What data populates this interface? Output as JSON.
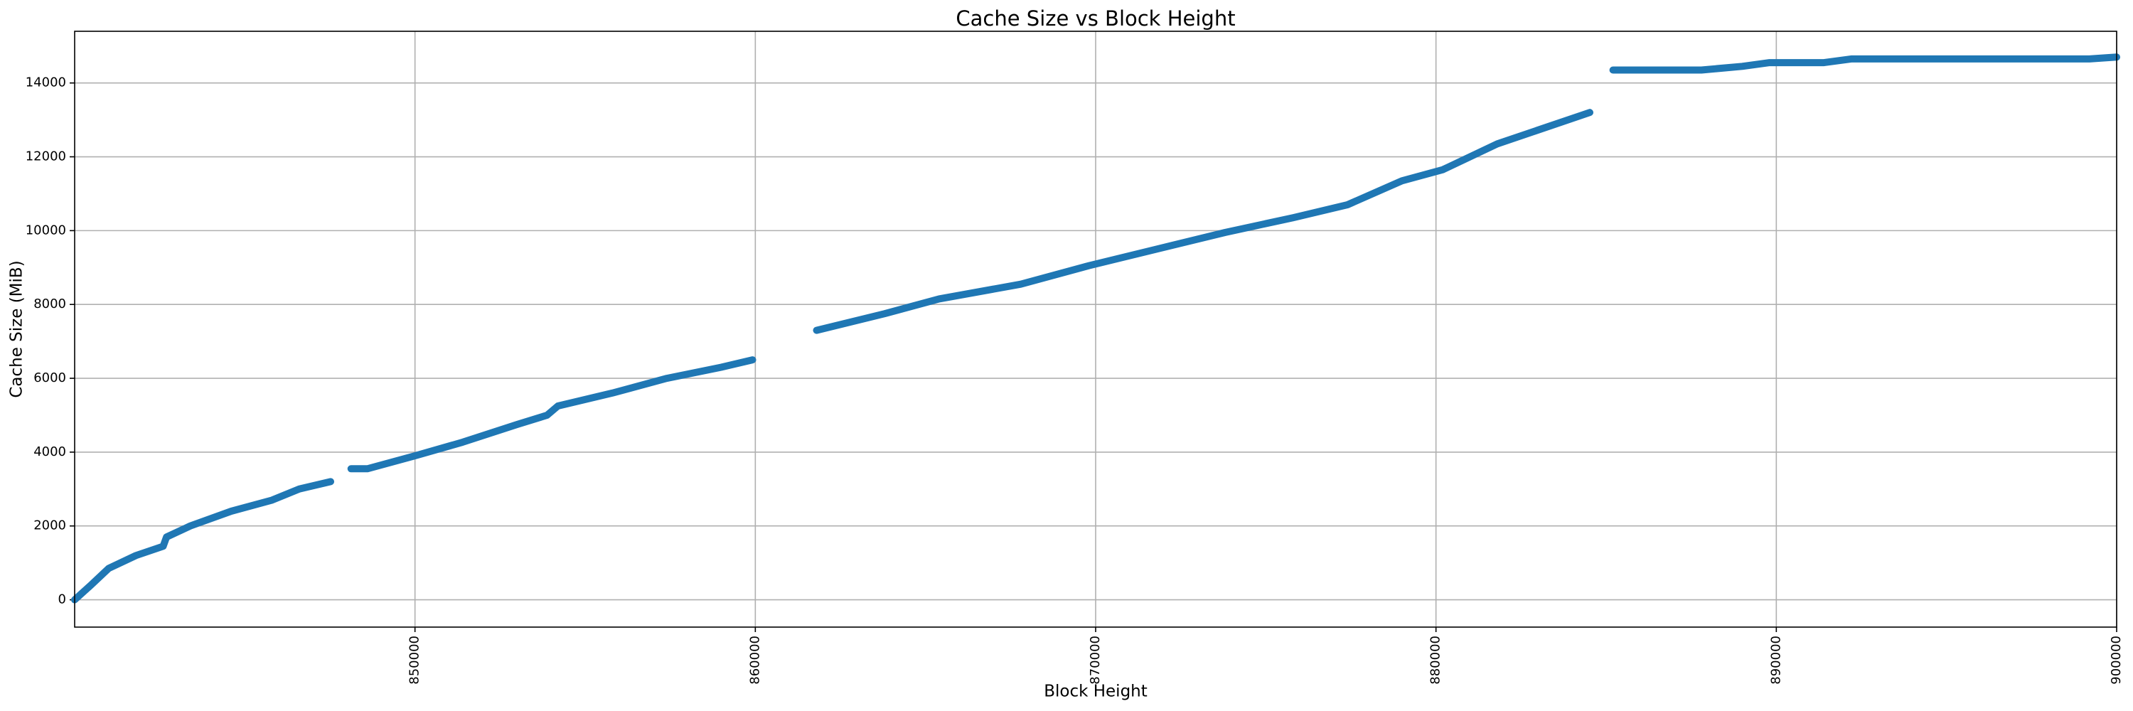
{
  "chart_data": {
    "type": "line",
    "title": "Cache Size vs Block Height",
    "x_label": "Block Height",
    "y_label": "Cache Size (MiB)",
    "x": [
      840000,
      840480,
      841000,
      841800,
      842600,
      842700,
      843400,
      844600,
      845800,
      846600,
      847520,
      847600,
      848120,
      848600,
      850000,
      851400,
      853000,
      853880,
      854200,
      855800,
      857400,
      859000,
      859920,
      859960,
      861800,
      863800,
      865400,
      867800,
      869800,
      871800,
      873800,
      875800,
      877400,
      879000,
      880200,
      881800,
      883400,
      884520,
      884560,
      885200,
      887800,
      889000,
      889800,
      891400,
      892200,
      899200,
      900000
    ],
    "series": [
      {
        "name": "Cache Size",
        "color": "#1f77b4",
        "values": [
          0,
          400,
          850,
          1200,
          1450,
          1700,
          2000,
          2400,
          2700,
          3000,
          3200,
          null,
          3550,
          3550,
          3900,
          4270,
          4750,
          5000,
          5250,
          5600,
          6000,
          6300,
          6500,
          null,
          7300,
          7750,
          8150,
          8550,
          9050,
          9500,
          9950,
          10350,
          10700,
          11350,
          11650,
          12350,
          12850,
          13200,
          null,
          14350,
          14350,
          14450,
          14550,
          14550,
          14650,
          14650,
          14700
        ]
      }
    ],
    "xlim": [
      840000,
      900000
    ],
    "ylim": [
      -740,
      15400
    ],
    "xticks": [
      850000,
      860000,
      870000,
      880000,
      890000,
      900000
    ],
    "yticks": [
      0,
      2000,
      4000,
      6000,
      8000,
      10000,
      12000,
      14000
    ],
    "grid": true
  }
}
